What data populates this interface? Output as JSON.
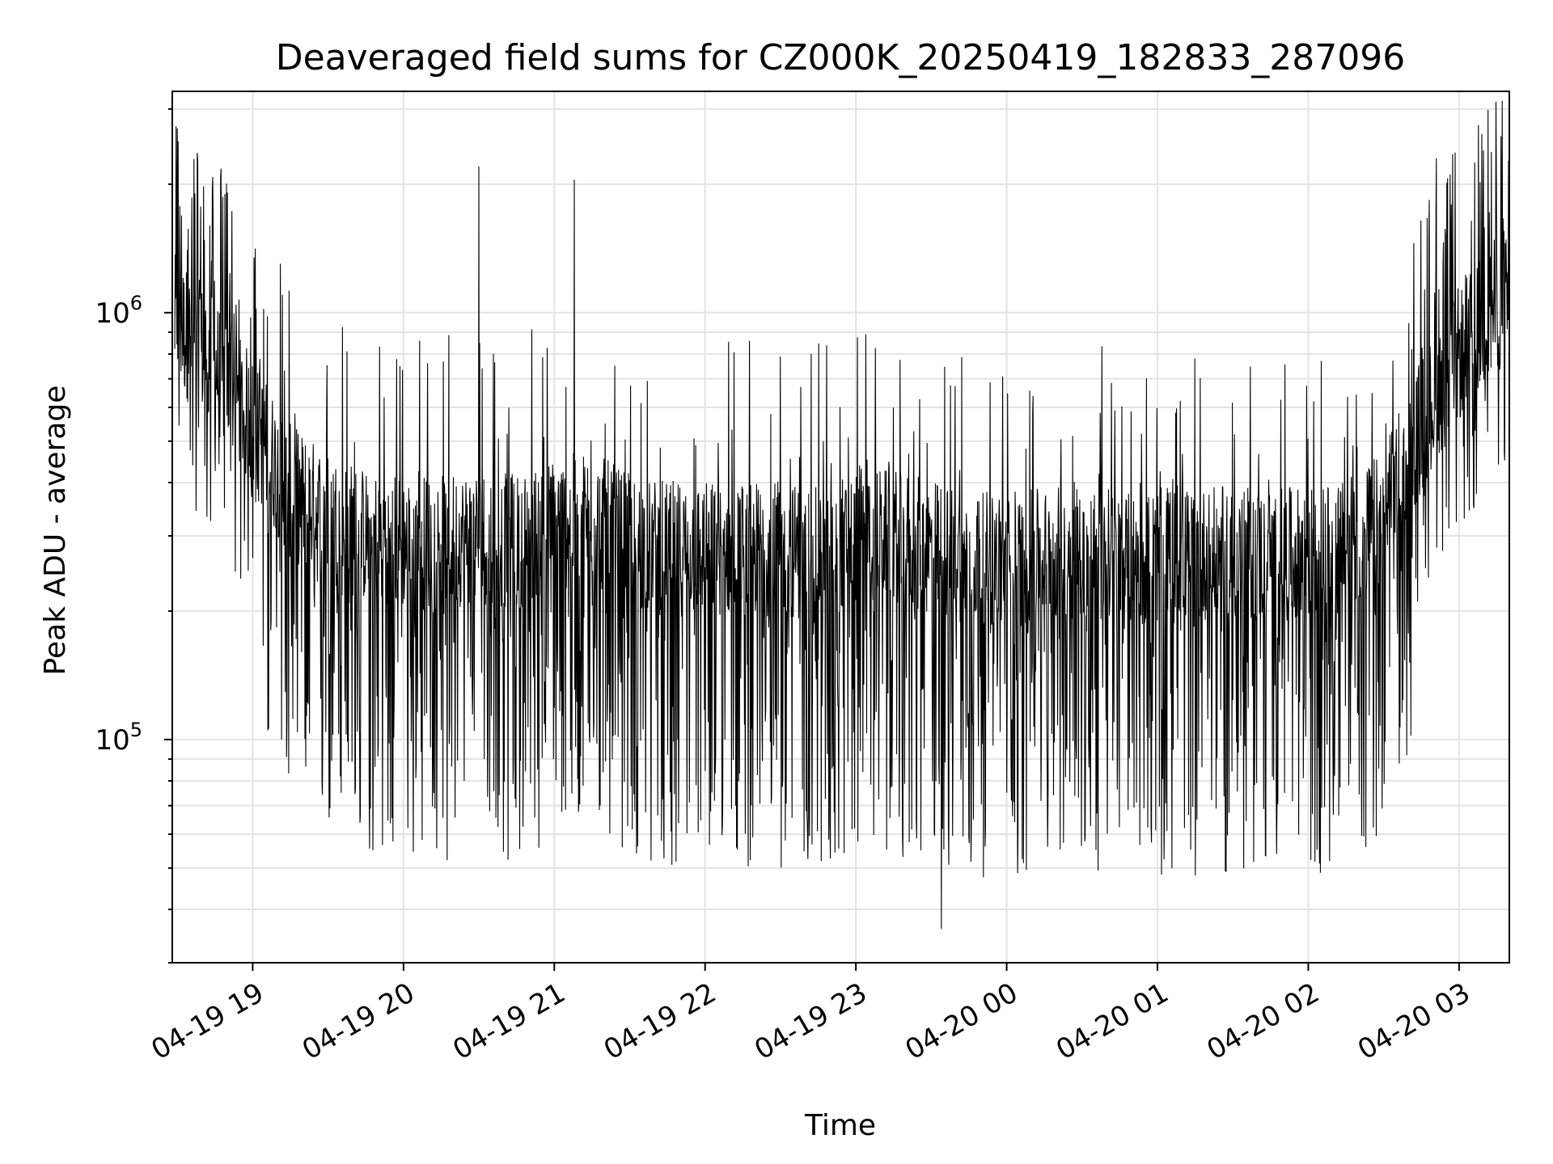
{
  "chart_data": {
    "type": "line",
    "title": "Deaveraged field sums for CZ000K_20250419_182833_287096",
    "xlabel": "Time",
    "ylabel": "Peak ADU - average",
    "x_scale": "time",
    "y_scale": "log",
    "xlim": [
      "2025-04-19 18:28",
      "2025-04-20 03:20"
    ],
    "ylim": [
      30000,
      3300000
    ],
    "x_ticks": [
      "04-19 19",
      "04-19 20",
      "04-19 21",
      "04-19 22",
      "04-19 23",
      "04-20 00",
      "04-20 01",
      "04-20 02",
      "04-20 03"
    ],
    "y_ticks": [
      {
        "value": 100000,
        "base": "10",
        "exp": "5"
      },
      {
        "value": 1000000,
        "base": "10",
        "exp": "6"
      }
    ],
    "grid": true,
    "line_color": "#000000",
    "series": [
      {
        "x": [
          "2025-04-19 18:30",
          "2025-04-19 18:45",
          "2025-04-19 19:00",
          "2025-04-19 19:15",
          "2025-04-19 19:30",
          "2025-04-19 19:45",
          "2025-04-19 20:00",
          "2025-04-19 20:15",
          "2025-04-19 20:30",
          "2025-04-19 20:45",
          "2025-04-19 21:00",
          "2025-04-19 21:15",
          "2025-04-19 21:30",
          "2025-04-19 21:45",
          "2025-04-19 22:00",
          "2025-04-19 22:15",
          "2025-04-19 22:30",
          "2025-04-19 22:45",
          "2025-04-19 23:00",
          "2025-04-19 23:15",
          "2025-04-19 23:30",
          "2025-04-19 23:45",
          "2025-04-20 00:00",
          "2025-04-20 00:15",
          "2025-04-20 00:30",
          "2025-04-20 00:45",
          "2025-04-20 01:00",
          "2025-04-20 01:15",
          "2025-04-20 01:30",
          "2025-04-20 01:45",
          "2025-04-20 02:00",
          "2025-04-20 02:15",
          "2025-04-20 02:30",
          "2025-04-20 02:45",
          "2025-04-20 03:00",
          "2025-04-20 03:15"
        ],
        "values": [
          950000,
          750000,
          550000,
          380000,
          330000,
          300000,
          290000,
          290000,
          300000,
          290000,
          320000,
          330000,
          290000,
          280000,
          280000,
          280000,
          280000,
          270000,
          300000,
          300000,
          280000,
          270000,
          260000,
          270000,
          280000,
          260000,
          270000,
          270000,
          270000,
          270000,
          270000,
          280000,
          330000,
          550000,
          800000,
          1050000
        ]
      }
    ],
    "notable_points": [
      {
        "x": "2025-04-19 18:30",
        "y": 2700000
      },
      {
        "x": "2025-04-19 20:30",
        "y": 2200000
      },
      {
        "x": "2025-04-19 21:08",
        "y": 2050000
      },
      {
        "x": "2025-04-19 23:34",
        "y": 36000
      },
      {
        "x": "2025-04-20 02:51",
        "y": 2300000
      }
    ]
  }
}
